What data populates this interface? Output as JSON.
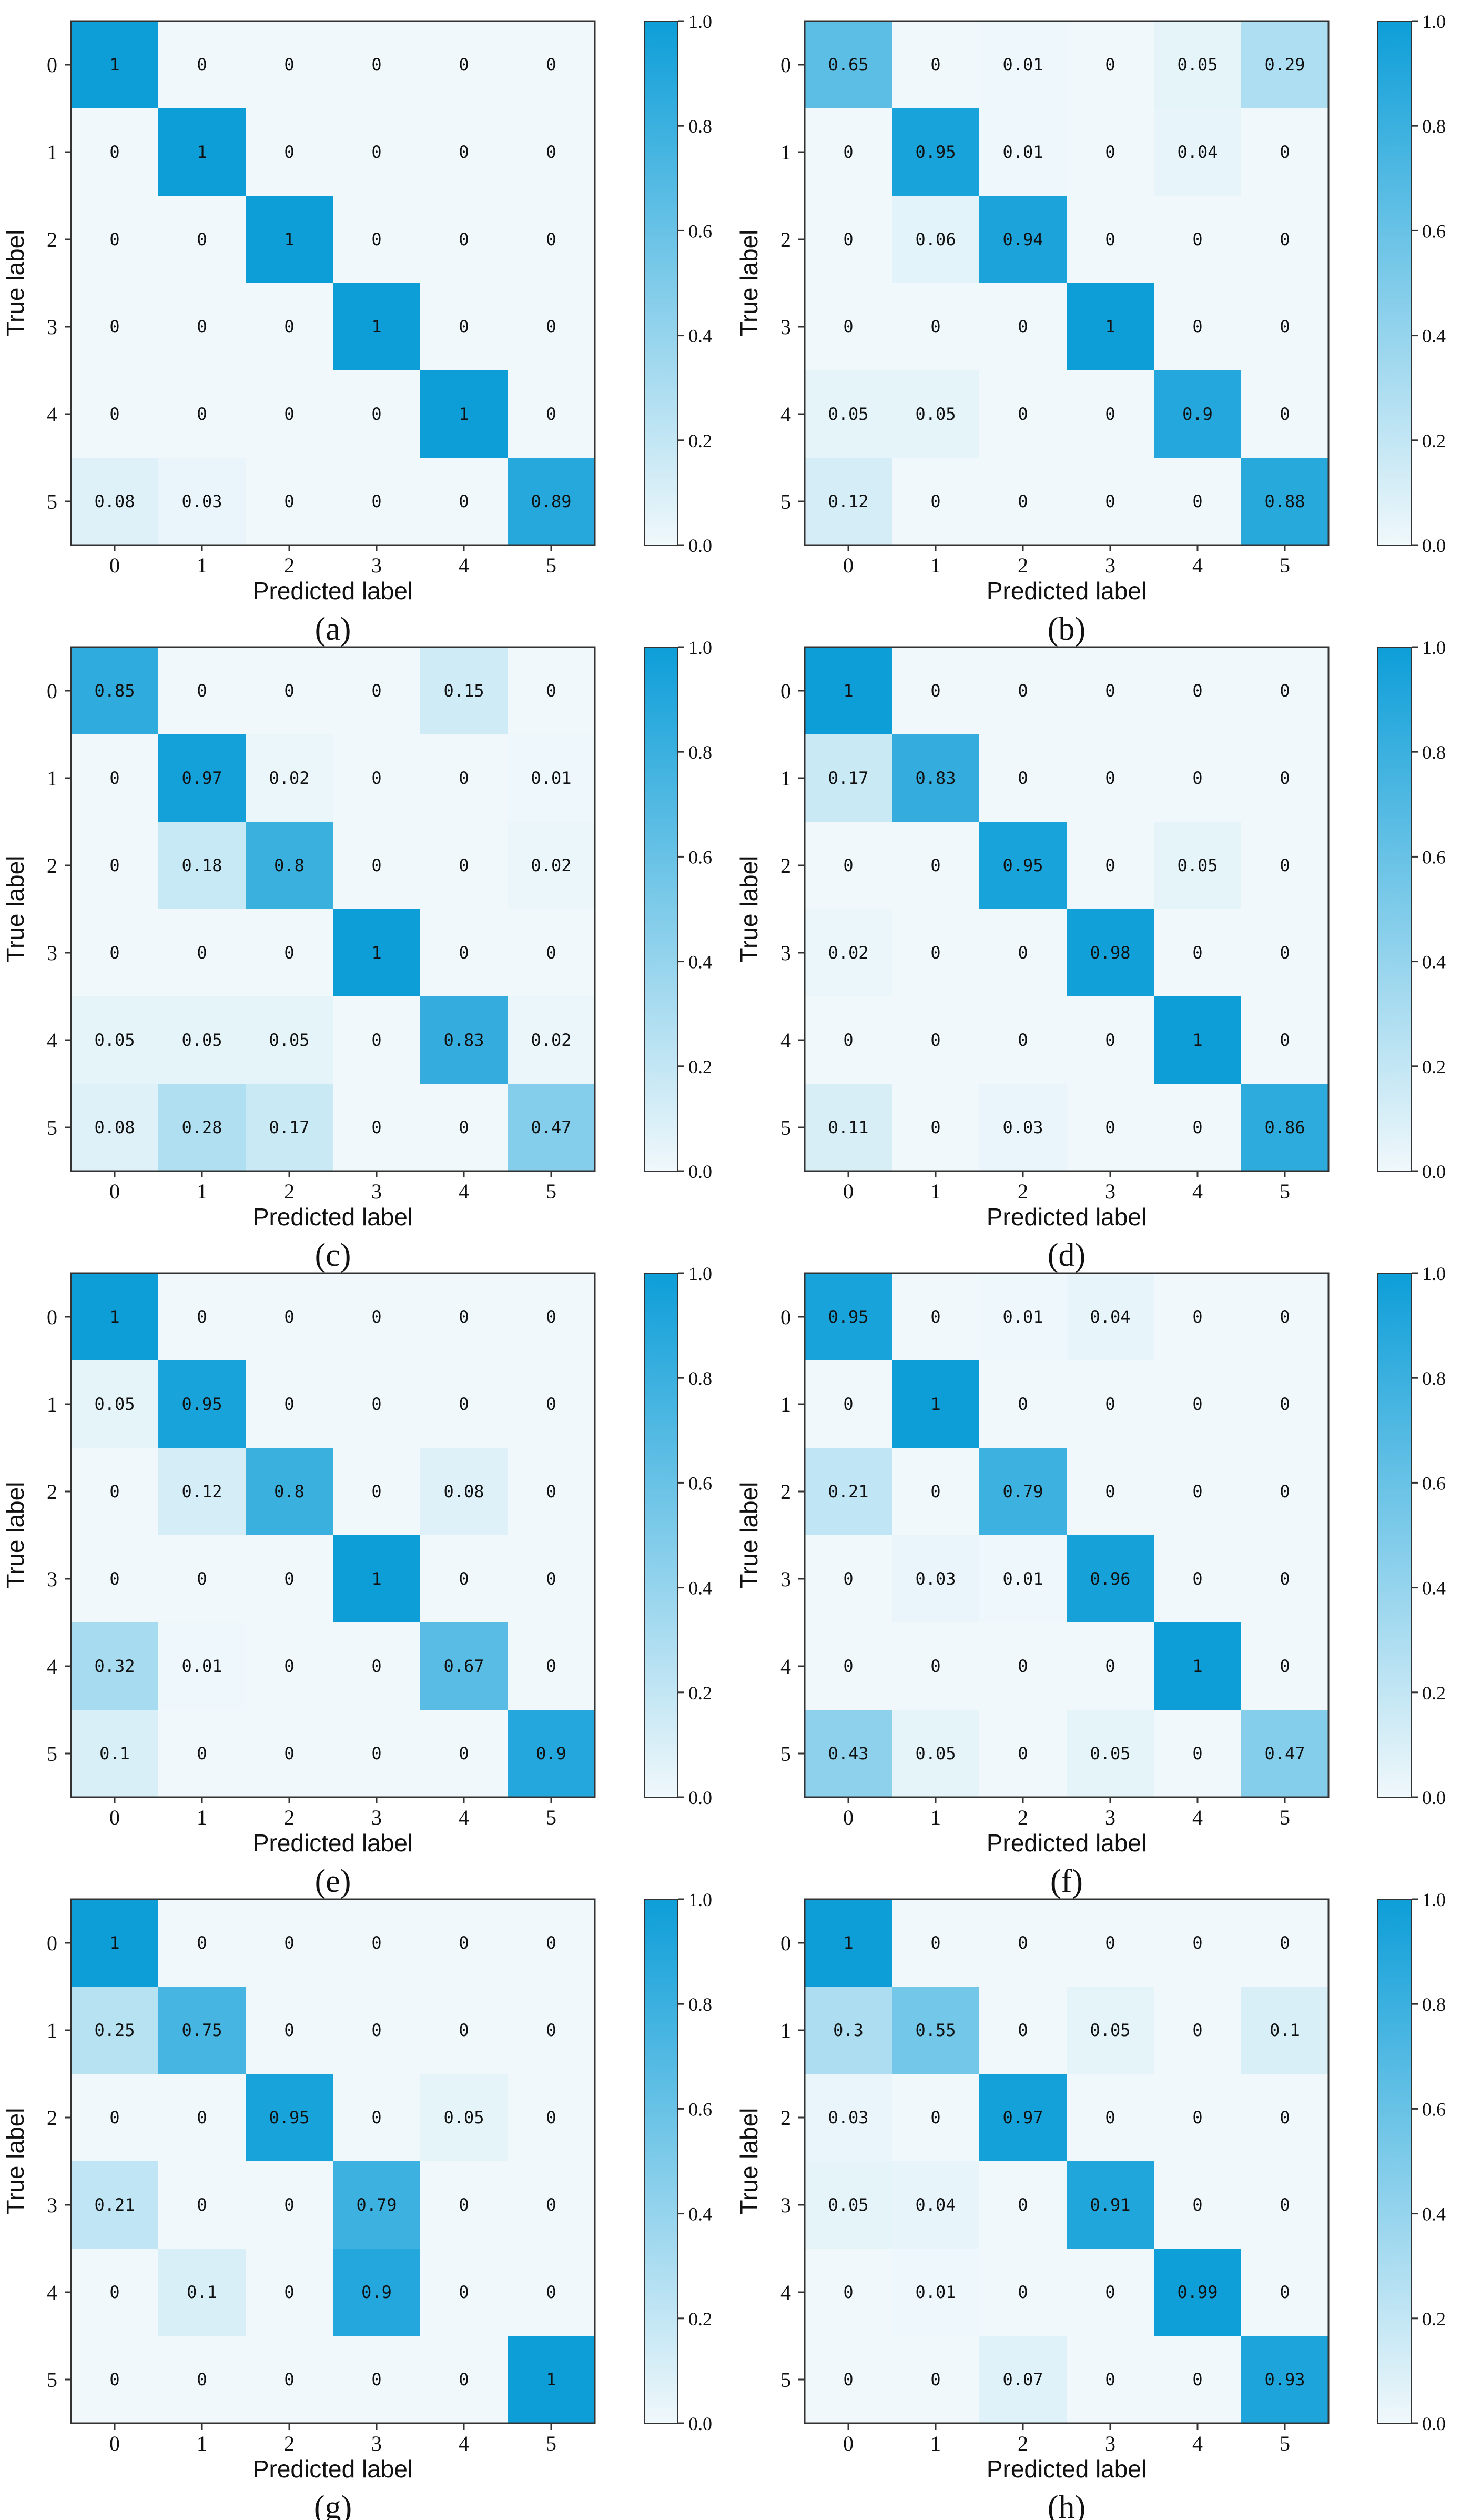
{
  "figure": {
    "colormap": {
      "low": "#f0f8fb",
      "high": "#0d9ed8",
      "text_color": "#111111",
      "axis_color": "#333333"
    }
  },
  "chart_data": [
    {
      "type": "heatmap",
      "panel_label": "(a)",
      "xlabel": "Predicted label",
      "ylabel": "True label",
      "x_categories": [
        "0",
        "1",
        "2",
        "3",
        "4",
        "5"
      ],
      "y_categories": [
        "0",
        "1",
        "2",
        "3",
        "4",
        "5"
      ],
      "values": [
        [
          "1",
          "0",
          "0",
          "0",
          "0",
          "0"
        ],
        [
          "0",
          "1",
          "0",
          "0",
          "0",
          "0"
        ],
        [
          "0",
          "0",
          "1",
          "0",
          "0",
          "0"
        ],
        [
          "0",
          "0",
          "0",
          "1",
          "0",
          "0"
        ],
        [
          "0",
          "0",
          "0",
          "0",
          "1",
          "0"
        ],
        [
          "0.08",
          "0.03",
          "0",
          "0",
          "0",
          "0.89"
        ]
      ],
      "colorbar": {
        "range": [
          0.0,
          1.0
        ],
        "ticks": [
          "0.0",
          "0.2",
          "0.4",
          "0.6",
          "0.8",
          "1.0"
        ]
      }
    },
    {
      "type": "heatmap",
      "panel_label": "(b)",
      "xlabel": "Predicted label",
      "ylabel": "True label",
      "x_categories": [
        "0",
        "1",
        "2",
        "3",
        "4",
        "5"
      ],
      "y_categories": [
        "0",
        "1",
        "2",
        "3",
        "4",
        "5"
      ],
      "values": [
        [
          "0.65",
          "0",
          "0.01",
          "0",
          "0.05",
          "0.29"
        ],
        [
          "0",
          "0.95",
          "0.01",
          "0",
          "0.04",
          "0"
        ],
        [
          "0",
          "0.06",
          "0.94",
          "0",
          "0",
          "0"
        ],
        [
          "0",
          "0",
          "0",
          "1",
          "0",
          "0"
        ],
        [
          "0.05",
          "0.05",
          "0",
          "0",
          "0.9",
          "0"
        ],
        [
          "0.12",
          "0",
          "0",
          "0",
          "0",
          "0.88"
        ]
      ],
      "colorbar": {
        "range": [
          0.0,
          1.0
        ],
        "ticks": [
          "0.0",
          "0.2",
          "0.4",
          "0.6",
          "0.8",
          "1.0"
        ]
      }
    },
    {
      "type": "heatmap",
      "panel_label": "(c)",
      "xlabel": "Predicted label",
      "ylabel": "True label",
      "x_categories": [
        "0",
        "1",
        "2",
        "3",
        "4",
        "5"
      ],
      "y_categories": [
        "0",
        "1",
        "2",
        "3",
        "4",
        "5"
      ],
      "values": [
        [
          "0.85",
          "0",
          "0",
          "0",
          "0.15",
          "0"
        ],
        [
          "0",
          "0.97",
          "0.02",
          "0",
          "0",
          "0.01"
        ],
        [
          "0",
          "0.18",
          "0.8",
          "0",
          "0",
          "0.02"
        ],
        [
          "0",
          "0",
          "0",
          "1",
          "0",
          "0"
        ],
        [
          "0.05",
          "0.05",
          "0.05",
          "0",
          "0.83",
          "0.02"
        ],
        [
          "0.08",
          "0.28",
          "0.17",
          "0",
          "0",
          "0.47"
        ]
      ],
      "colorbar": {
        "range": [
          0.0,
          1.0
        ],
        "ticks": [
          "0.0",
          "0.2",
          "0.4",
          "0.6",
          "0.8",
          "1.0"
        ]
      }
    },
    {
      "type": "heatmap",
      "panel_label": "(d)",
      "xlabel": "Predicted label",
      "ylabel": "True label",
      "x_categories": [
        "0",
        "1",
        "2",
        "3",
        "4",
        "5"
      ],
      "y_categories": [
        "0",
        "1",
        "2",
        "3",
        "4",
        "5"
      ],
      "values": [
        [
          "1",
          "0",
          "0",
          "0",
          "0",
          "0"
        ],
        [
          "0.17",
          "0.83",
          "0",
          "0",
          "0",
          "0"
        ],
        [
          "0",
          "0",
          "0.95",
          "0",
          "0.05",
          "0"
        ],
        [
          "0.02",
          "0",
          "0",
          "0.98",
          "0",
          "0"
        ],
        [
          "0",
          "0",
          "0",
          "0",
          "1",
          "0"
        ],
        [
          "0.11",
          "0",
          "0.03",
          "0",
          "0",
          "0.86"
        ]
      ],
      "colorbar": {
        "range": [
          0.0,
          1.0
        ],
        "ticks": [
          "0.0",
          "0.2",
          "0.4",
          "0.6",
          "0.8",
          "1.0"
        ]
      }
    },
    {
      "type": "heatmap",
      "panel_label": "(e)",
      "xlabel": "Predicted label",
      "ylabel": "True label",
      "x_categories": [
        "0",
        "1",
        "2",
        "3",
        "4",
        "5"
      ],
      "y_categories": [
        "0",
        "1",
        "2",
        "3",
        "4",
        "5"
      ],
      "values": [
        [
          "1",
          "0",
          "0",
          "0",
          "0",
          "0"
        ],
        [
          "0.05",
          "0.95",
          "0",
          "0",
          "0",
          "0"
        ],
        [
          "0",
          "0.12",
          "0.8",
          "0",
          "0.08",
          "0"
        ],
        [
          "0",
          "0",
          "0",
          "1",
          "0",
          "0"
        ],
        [
          "0.32",
          "0.01",
          "0",
          "0",
          "0.67",
          "0"
        ],
        [
          "0.1",
          "0",
          "0",
          "0",
          "0",
          "0.9"
        ]
      ],
      "colorbar": {
        "range": [
          0.0,
          1.0
        ],
        "ticks": [
          "0.0",
          "0.2",
          "0.4",
          "0.6",
          "0.8",
          "1.0"
        ]
      }
    },
    {
      "type": "heatmap",
      "panel_label": "(f)",
      "xlabel": "Predicted label",
      "ylabel": "True label",
      "x_categories": [
        "0",
        "1",
        "2",
        "3",
        "4",
        "5"
      ],
      "y_categories": [
        "0",
        "1",
        "2",
        "3",
        "4",
        "5"
      ],
      "values": [
        [
          "0.95",
          "0",
          "0.01",
          "0.04",
          "0",
          "0"
        ],
        [
          "0",
          "1",
          "0",
          "0",
          "0",
          "0"
        ],
        [
          "0.21",
          "0",
          "0.79",
          "0",
          "0",
          "0"
        ],
        [
          "0",
          "0.03",
          "0.01",
          "0.96",
          "0",
          "0"
        ],
        [
          "0",
          "0",
          "0",
          "0",
          "1",
          "0"
        ],
        [
          "0.43",
          "0.05",
          "0",
          "0.05",
          "0",
          "0.47"
        ]
      ],
      "colorbar": {
        "range": [
          0.0,
          1.0
        ],
        "ticks": [
          "0.0",
          "0.2",
          "0.4",
          "0.6",
          "0.8",
          "1.0"
        ]
      }
    },
    {
      "type": "heatmap",
      "panel_label": "(g)",
      "xlabel": "Predicted label",
      "ylabel": "True label",
      "x_categories": [
        "0",
        "1",
        "2",
        "3",
        "4",
        "5"
      ],
      "y_categories": [
        "0",
        "1",
        "2",
        "3",
        "4",
        "5"
      ],
      "values": [
        [
          "1",
          "0",
          "0",
          "0",
          "0",
          "0"
        ],
        [
          "0.25",
          "0.75",
          "0",
          "0",
          "0",
          "0"
        ],
        [
          "0",
          "0",
          "0.95",
          "0",
          "0.05",
          "0"
        ],
        [
          "0.21",
          "0",
          "0",
          "0.79",
          "0",
          "0"
        ],
        [
          "0",
          "0.1",
          "0",
          "0.9",
          "0",
          "0"
        ],
        [
          "0",
          "0",
          "0",
          "0",
          "0",
          "1"
        ]
      ],
      "colorbar": {
        "range": [
          0.0,
          1.0
        ],
        "ticks": [
          "0.0",
          "0.2",
          "0.4",
          "0.6",
          "0.8",
          "1.0"
        ]
      }
    },
    {
      "type": "heatmap",
      "panel_label": "(h)",
      "xlabel": "Predicted label",
      "ylabel": "True label",
      "x_categories": [
        "0",
        "1",
        "2",
        "3",
        "4",
        "5"
      ],
      "y_categories": [
        "0",
        "1",
        "2",
        "3",
        "4",
        "5"
      ],
      "values": [
        [
          "1",
          "0",
          "0",
          "0",
          "0",
          "0"
        ],
        [
          "0.3",
          "0.55",
          "0",
          "0.05",
          "0",
          "0.1"
        ],
        [
          "0.03",
          "0",
          "0.97",
          "0",
          "0",
          "0"
        ],
        [
          "0.05",
          "0.04",
          "0",
          "0.91",
          "0",
          "0"
        ],
        [
          "0",
          "0.01",
          "0",
          "0",
          "0.99",
          "0"
        ],
        [
          "0",
          "0",
          "0.07",
          "0",
          "0",
          "0.93"
        ]
      ],
      "colorbar": {
        "range": [
          0.0,
          1.0
        ],
        "ticks": [
          "0.0",
          "0.2",
          "0.4",
          "0.6",
          "0.8",
          "1.0"
        ]
      }
    }
  ]
}
